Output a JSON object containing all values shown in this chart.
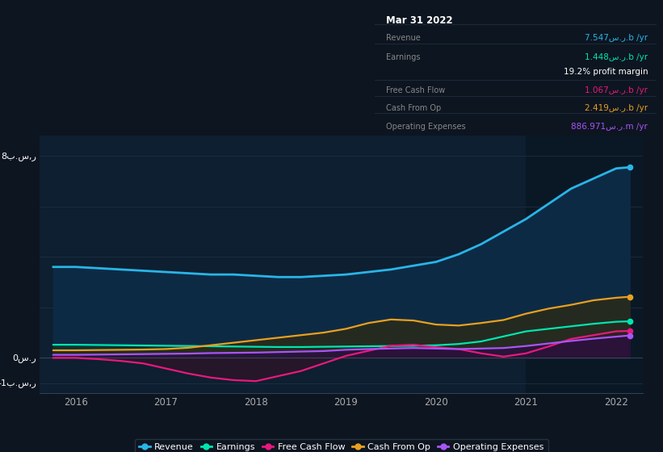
{
  "bg_color": "#0d1520",
  "plot_bg_color": "#0d1f30",
  "grid_color": "#1e3448",
  "years": [
    2015.75,
    2016.0,
    2016.25,
    2016.5,
    2016.75,
    2017.0,
    2017.25,
    2017.5,
    2017.75,
    2018.0,
    2018.25,
    2018.5,
    2018.75,
    2019.0,
    2019.25,
    2019.5,
    2019.75,
    2020.0,
    2020.25,
    2020.5,
    2020.75,
    2021.0,
    2021.25,
    2021.5,
    2021.75,
    2022.0,
    2022.15
  ],
  "revenue": [
    3.6,
    3.6,
    3.55,
    3.5,
    3.45,
    3.4,
    3.35,
    3.3,
    3.3,
    3.25,
    3.2,
    3.2,
    3.25,
    3.3,
    3.4,
    3.5,
    3.65,
    3.8,
    4.1,
    4.5,
    5.0,
    5.5,
    6.1,
    6.7,
    7.1,
    7.5,
    7.547
  ],
  "earnings": [
    0.52,
    0.52,
    0.51,
    0.5,
    0.49,
    0.48,
    0.47,
    0.46,
    0.45,
    0.44,
    0.43,
    0.43,
    0.44,
    0.45,
    0.46,
    0.47,
    0.48,
    0.5,
    0.55,
    0.65,
    0.85,
    1.05,
    1.15,
    1.25,
    1.35,
    1.43,
    1.448
  ],
  "free_cash_flow": [
    0.0,
    0.0,
    -0.05,
    -0.12,
    -0.22,
    -0.42,
    -0.62,
    -0.78,
    -0.88,
    -0.92,
    -0.72,
    -0.52,
    -0.22,
    0.08,
    0.28,
    0.48,
    0.52,
    0.42,
    0.35,
    0.18,
    0.05,
    0.18,
    0.45,
    0.75,
    0.9,
    1.05,
    1.067
  ],
  "cash_from_op": [
    0.3,
    0.3,
    0.31,
    0.32,
    0.33,
    0.35,
    0.4,
    0.5,
    0.6,
    0.7,
    0.8,
    0.9,
    1.0,
    1.15,
    1.38,
    1.52,
    1.48,
    1.32,
    1.28,
    1.38,
    1.5,
    1.75,
    1.95,
    2.1,
    2.28,
    2.38,
    2.419
  ],
  "op_expenses": [
    0.12,
    0.12,
    0.13,
    0.14,
    0.15,
    0.16,
    0.17,
    0.19,
    0.2,
    0.21,
    0.23,
    0.25,
    0.27,
    0.32,
    0.35,
    0.37,
    0.39,
    0.37,
    0.35,
    0.37,
    0.39,
    0.47,
    0.57,
    0.67,
    0.76,
    0.84,
    0.887
  ],
  "revenue_color": "#29b5e8",
  "earnings_color": "#00e5b0",
  "fcf_color": "#e8197d",
  "cashop_color": "#e8a020",
  "opex_color": "#a855f7",
  "ylim": [
    -1.4,
    8.8
  ],
  "xlim": [
    2015.6,
    2022.3
  ],
  "highlight_x_start": 2021.0,
  "xticks": [
    2016,
    2017,
    2018,
    2019,
    2020,
    2021,
    2022
  ],
  "ytick_vals": [
    -1,
    0,
    2,
    4,
    6,
    8
  ],
  "info_date": "Mar 31 2022",
  "info_rows": [
    {
      "label": "Revenue",
      "value": "7.547س.ر.b /yr",
      "color": "#29b5e8"
    },
    {
      "label": "Earnings",
      "value": "1.448س.ر.b /yr",
      "color": "#00e5b0"
    },
    {
      "label": "",
      "value": "19.2% profit margin",
      "color": "#ffffff"
    },
    {
      "label": "Free Cash Flow",
      "value": "1.067س.ر.b /yr",
      "color": "#e8197d"
    },
    {
      "label": "Cash From Op",
      "value": "2.419س.ر.b /yr",
      "color": "#e8a020"
    },
    {
      "label": "Operating Expenses",
      "value": "886.971س.ر.m /yr",
      "color": "#a855f7"
    }
  ],
  "legend_items": [
    "Revenue",
    "Earnings",
    "Free Cash Flow",
    "Cash From Op",
    "Operating Expenses"
  ],
  "legend_colors": [
    "#29b5e8",
    "#00e5b0",
    "#e8197d",
    "#e8a020",
    "#a855f7"
  ]
}
